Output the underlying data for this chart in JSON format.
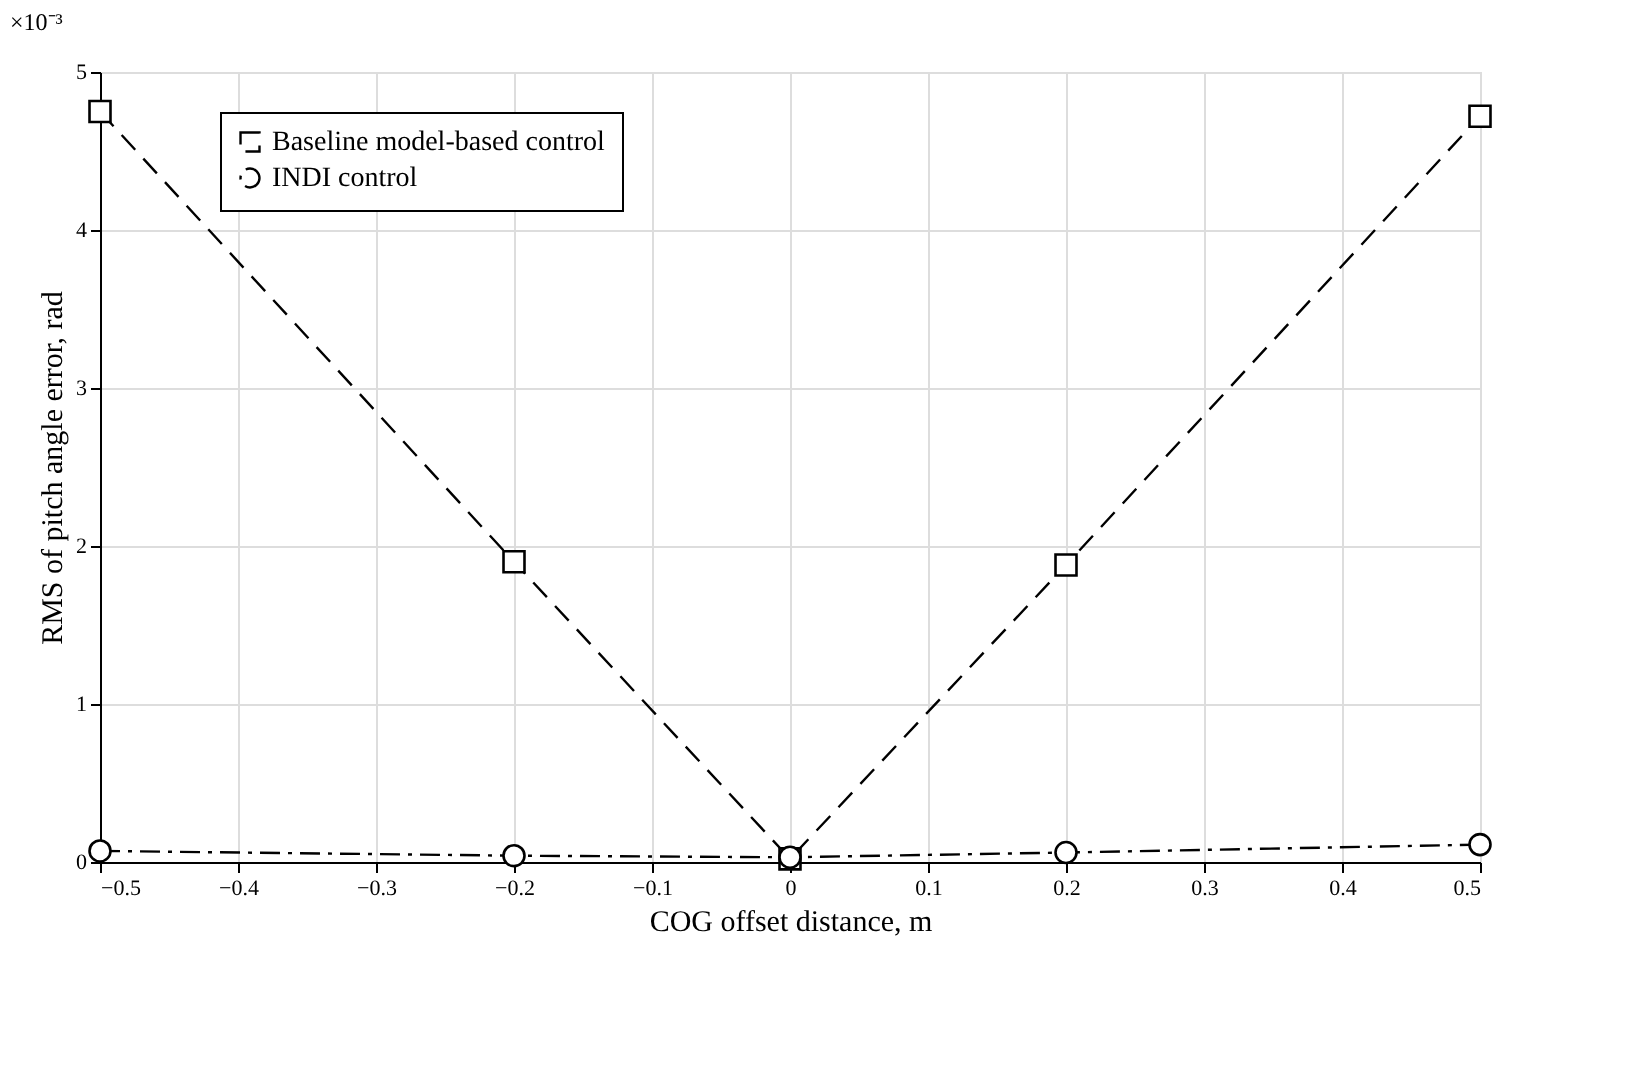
{
  "chart_data": {
    "type": "line",
    "xlabel": "COG offset distance, m",
    "ylabel": "RMS of pitch angle error, rad",
    "annotations": [
      "×10⁻³"
    ],
    "x": [
      -0.5,
      -0.2,
      0,
      0.2,
      0.5
    ],
    "series": [
      {
        "name": "Baseline model-based control",
        "color": "#000000",
        "values": [
          4.75,
          1.9,
          0.02,
          1.88,
          4.72
        ],
        "marker": "square",
        "line_style": "dashed"
      },
      {
        "name": "INDI control",
        "color": "#000000",
        "values": [
          0.07,
          0.04,
          0.03,
          0.06,
          0.11
        ],
        "marker": "circle",
        "line_style": "dashdot"
      }
    ],
    "xlim": [
      -0.5,
      0.5
    ],
    "xticks": [
      {
        "value": -0.5,
        "label": "−0.5"
      },
      {
        "value": -0.4,
        "label": "−0.4"
      },
      {
        "value": -0.3,
        "label": "−0.3"
      },
      {
        "value": -0.2,
        "label": "−0.2"
      },
      {
        "value": -0.1,
        "label": "−0.1"
      },
      0,
      0.1,
      0.2,
      0.3,
      0.4,
      0.5
    ],
    "ylim": [
      0,
      5
    ],
    "yticks": [
      0,
      1,
      2,
      3,
      4,
      5
    ],
    "grid": true,
    "legend": "top left"
  }
}
